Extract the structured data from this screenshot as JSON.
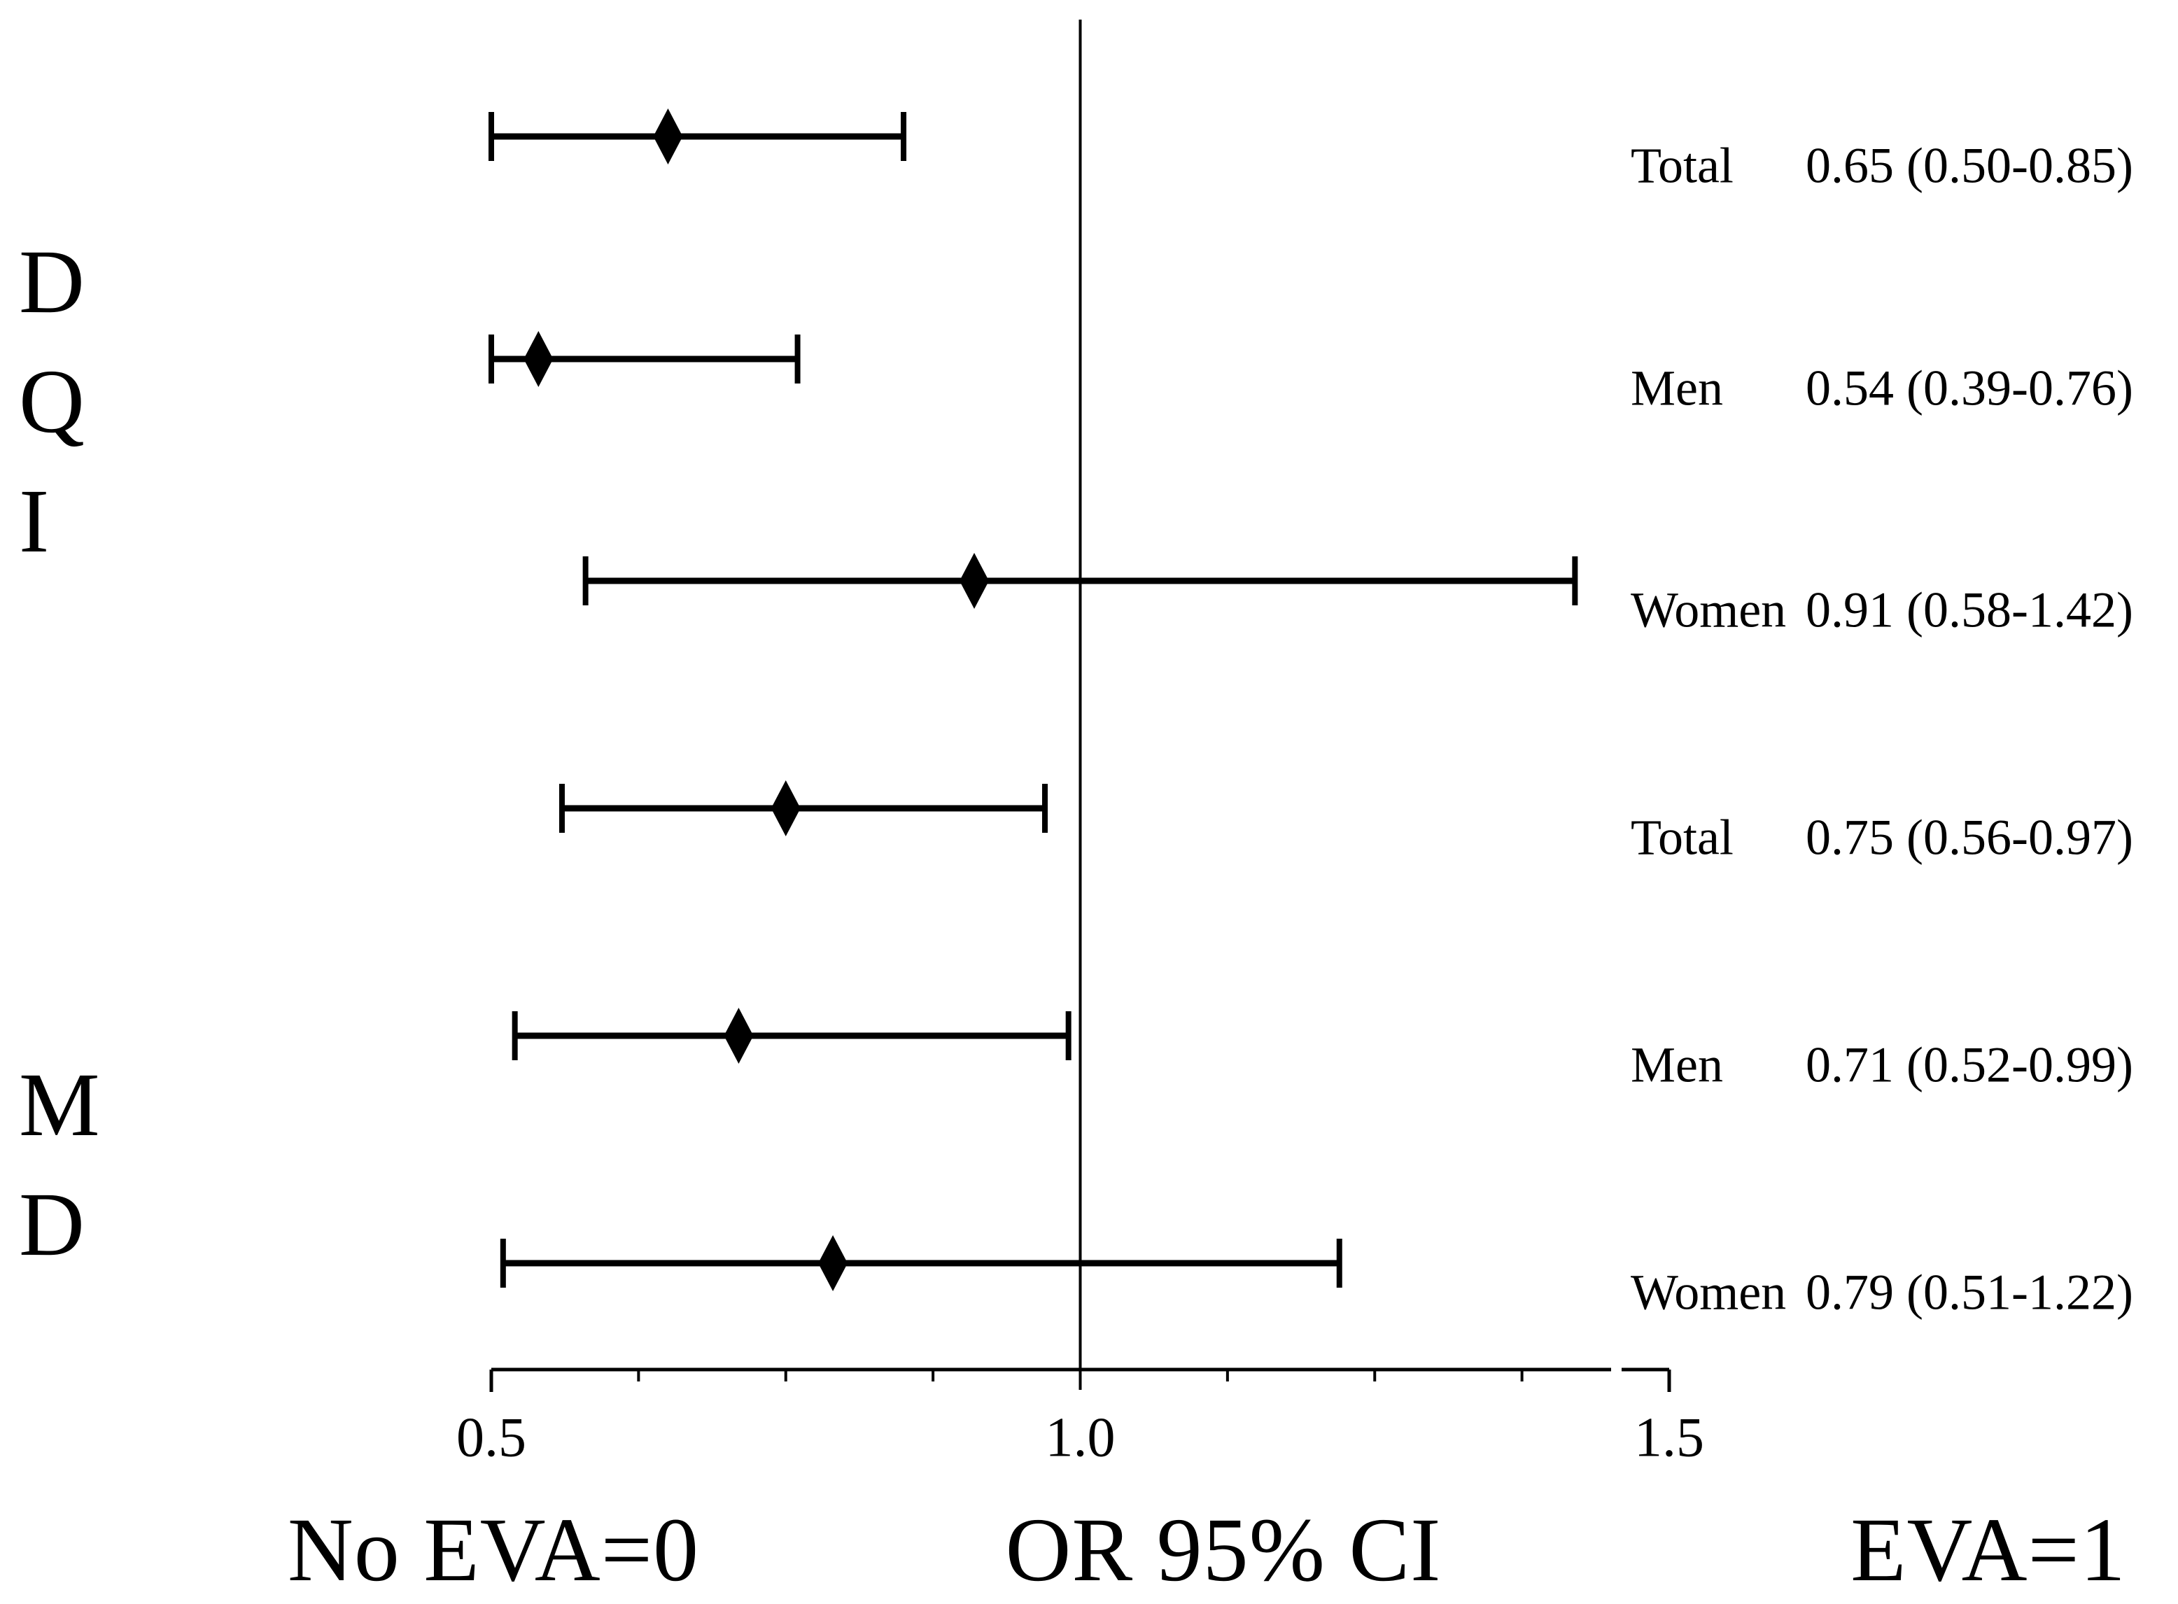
{
  "figure": {
    "background": "#ffffff",
    "ink": "#000000"
  },
  "chart_data": {
    "type": "forest",
    "title": "",
    "x_axis": {
      "min": 0.5,
      "max": 1.5,
      "major_ticks": [
        0.5,
        1.0,
        1.5
      ],
      "tick_labels": [
        "0.5",
        "1.0",
        "1.5"
      ],
      "minor_tick_step": 0.125,
      "reference_line": 1.0,
      "grid": false
    },
    "legend": null,
    "groups": [
      {
        "label": "DQI",
        "rows": [
          {
            "name": "Total",
            "or": 0.65,
            "ci_low": 0.5,
            "ci_high": 0.85,
            "value_text": "0.65 (0.50-0.85)"
          },
          {
            "name": "Men",
            "or": 0.54,
            "ci_low": 0.39,
            "ci_high": 0.76,
            "value_text": "0.54 (0.39-0.76)"
          },
          {
            "name": "Women",
            "or": 0.91,
            "ci_low": 0.58,
            "ci_high": 1.42,
            "value_text": "0.91 (0.58-1.42)"
          }
        ]
      },
      {
        "label": "MD",
        "rows": [
          {
            "name": "Total",
            "or": 0.75,
            "ci_low": 0.56,
            "ci_high": 0.97,
            "value_text": "0.75 (0.56-0.97)"
          },
          {
            "name": "Men",
            "or": 0.71,
            "ci_low": 0.52,
            "ci_high": 0.99,
            "value_text": "0.71 (0.52-0.99)"
          },
          {
            "name": "Women",
            "or": 0.79,
            "ci_low": 0.51,
            "ci_high": 1.22,
            "value_text": "0.79 (0.51-1.22)"
          }
        ]
      }
    ],
    "footer": {
      "left": "No EVA=0",
      "center": "OR 95% CI",
      "right": "EVA=1"
    }
  }
}
